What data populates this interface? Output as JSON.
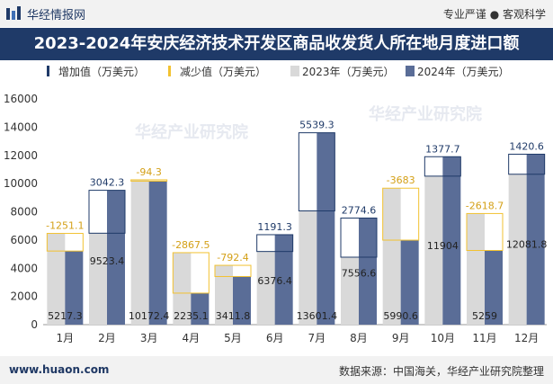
{
  "header": {
    "logo_text": "华经情报网",
    "slogan": "专业严谨 ● 客观科学"
  },
  "footer": {
    "website": "www.huaon.com",
    "source": "数据来源：中国海关，华经产业研究院整理"
  },
  "watermark": "华经产业研究院",
  "chart_data": {
    "type": "bar",
    "title": "2023-2024年安庆经济技术开发区商品收发货人所在地月度进口额",
    "categories": [
      "1月",
      "2月",
      "3月",
      "4月",
      "5月",
      "6月",
      "7月",
      "8月",
      "9月",
      "10月",
      "11月",
      "12月"
    ],
    "series": [
      {
        "name": "2023年（万美元）",
        "values": [
          6468.4,
          6481.0,
          10266.6,
          5102.6,
          4204.2,
          5185.1,
          8062.1,
          4781.9,
          9673.6,
          10526.3,
          7877.7,
          10661.2
        ]
      },
      {
        "name": "2024年（万美元）",
        "values": [
          5217.3,
          9523.4,
          10172.4,
          2235.1,
          3411.8,
          6376.4,
          13601.4,
          7556.6,
          5990.6,
          11904,
          5259,
          12081.8
        ]
      }
    ],
    "bar_labels_2024": [
      "5217.3",
      "9523.4",
      "10172.4",
      "2235.1",
      "3411.8",
      "6376.4",
      "13601.4",
      "7556.6",
      "5990.6",
      "11904",
      "5259",
      "12081.8"
    ],
    "change_labels": [
      "-1251.1",
      "3042.3",
      "-94.3",
      "-2867.5",
      "-792.4",
      "1191.3",
      "5539.3",
      "2774.6",
      "-3683",
      "1377.7",
      "-2618.7",
      "1420.6"
    ],
    "legend": [
      "增加值（万美元）",
      "减少值（万美元）",
      "2023年（万美元）",
      "2024年（万美元）"
    ],
    "legend_position": "top-left",
    "ylim": [
      0,
      16000
    ],
    "yticks": [
      "0",
      "2000",
      "4000",
      "6000",
      "8000",
      "10000",
      "12000",
      "14000",
      "16000"
    ],
    "colors": {
      "y2023": "#d9d9d9",
      "y2024": "#5a6d97",
      "increase": "#1f3a68",
      "decrease": "#f2c231",
      "change_text_up": "#1f3a68",
      "change_text_down": "#d4a017"
    }
  }
}
